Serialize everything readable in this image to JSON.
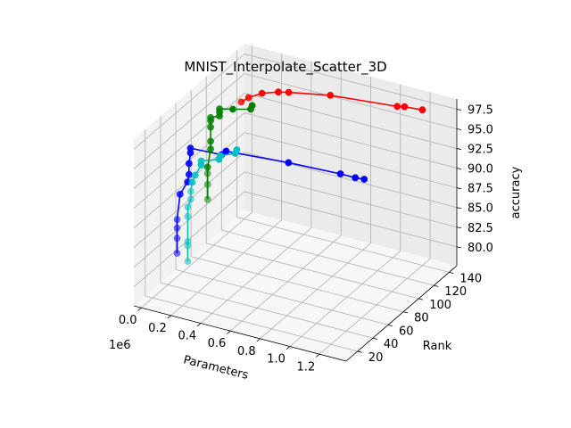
{
  "chart_data": {
    "type": "scatter",
    "projection": "3d",
    "title": "MNIST_Interpolate_Scatter_3D",
    "xlabel": "Parameters",
    "ylabel": "Rank",
    "zlabel": "accuracy",
    "x_offset_label": "1e6",
    "xlim": [
      -0.05,
      1.38
    ],
    "ylim": [
      5,
      150
    ],
    "zlim": [
      77.6,
      98.8
    ],
    "x_ticks": [
      0.0,
      0.2,
      0.4,
      0.6,
      0.8,
      1.0,
      1.2
    ],
    "x_tick_labels": [
      "0.0",
      "0.2",
      "0.4",
      "0.6",
      "0.8",
      "1.0",
      "1.2"
    ],
    "y_ticks": [
      20,
      40,
      60,
      80,
      100,
      120,
      140
    ],
    "y_tick_labels": [
      "20",
      "40",
      "60",
      "80",
      "100",
      "120",
      "140"
    ],
    "z_ticks": [
      80.0,
      82.5,
      85.0,
      87.5,
      90.0,
      92.5,
      95.0,
      97.5
    ],
    "z_tick_labels": [
      "80.0",
      "82.5",
      "85.0",
      "87.5",
      "90.0",
      "92.5",
      "95.0",
      "97.5"
    ],
    "grid": true,
    "legend": "none",
    "series": [
      {
        "color": "#ff0000",
        "points": [
          {
            "x": 0.0,
            "y": 136,
            "z": 92.8
          },
          {
            "x": 0.05,
            "y": 136,
            "z": 93.6
          },
          {
            "x": 0.14,
            "y": 136,
            "z": 94.6
          },
          {
            "x": 0.25,
            "y": 136,
            "z": 95.3
          },
          {
            "x": 0.32,
            "y": 136,
            "z": 95.6
          },
          {
            "x": 0.6,
            "y": 136,
            "z": 96.6
          },
          {
            "x": 1.05,
            "y": 136,
            "z": 97.4
          },
          {
            "x": 1.1,
            "y": 136,
            "z": 97.6
          },
          {
            "x": 1.22,
            "y": 136,
            "z": 97.8
          }
        ]
      },
      {
        "color": "#0000ff",
        "points": [
          {
            "x": 0.0,
            "y": 52,
            "z": 80.6
          },
          {
            "x": 0.0,
            "y": 52,
            "z": 82.5
          },
          {
            "x": 0.0,
            "y": 52,
            "z": 83.8
          },
          {
            "x": 0.0,
            "y": 52,
            "z": 84.9
          },
          {
            "x": 0.02,
            "y": 52,
            "z": 88.2
          },
          {
            "x": 0.07,
            "y": 52,
            "z": 90.0
          },
          {
            "x": 0.08,
            "y": 52,
            "z": 91.0
          },
          {
            "x": 0.08,
            "y": 52,
            "z": 92.4
          },
          {
            "x": 0.09,
            "y": 52,
            "z": 93.8
          },
          {
            "x": 0.09,
            "y": 52,
            "z": 94.4
          },
          {
            "x": 0.3,
            "y": 52,
            "z": 94.6
          },
          {
            "x": 0.33,
            "y": 52,
            "z": 95.2
          },
          {
            "x": 0.75,
            "y": 52,
            "z": 95.8
          },
          {
            "x": 1.1,
            "y": 52,
            "z": 96.1
          },
          {
            "x": 1.2,
            "y": 52,
            "z": 96.1
          },
          {
            "x": 1.26,
            "y": 52,
            "z": 96.2
          }
        ]
      },
      {
        "color": "#00bfbf",
        "points": [
          {
            "x": 0.0,
            "y": 66,
            "z": 78.4
          },
          {
            "x": 0.0,
            "y": 66,
            "z": 80.4
          },
          {
            "x": 0.0,
            "y": 66,
            "z": 80.9
          },
          {
            "x": 0.0,
            "y": 66,
            "z": 84.1
          },
          {
            "x": 0.0,
            "y": 66,
            "z": 85.3
          },
          {
            "x": 0.02,
            "y": 66,
            "z": 86.4
          },
          {
            "x": 0.02,
            "y": 66,
            "z": 87.4
          },
          {
            "x": 0.03,
            "y": 66,
            "z": 88.6
          },
          {
            "x": 0.05,
            "y": 66,
            "z": 89.6
          },
          {
            "x": 0.09,
            "y": 66,
            "z": 91.1
          },
          {
            "x": 0.09,
            "y": 66,
            "z": 91.6
          },
          {
            "x": 0.21,
            "y": 66,
            "z": 92.4
          },
          {
            "x": 0.22,
            "y": 66,
            "z": 92.9
          },
          {
            "x": 0.32,
            "y": 66,
            "z": 93.7
          },
          {
            "x": 0.33,
            "y": 66,
            "z": 94.2
          }
        ]
      },
      {
        "color": "#008000",
        "points": [
          {
            "x": 0.0,
            "y": 92,
            "z": 84.1
          },
          {
            "x": 0.0,
            "y": 92,
            "z": 86.0
          },
          {
            "x": 0.0,
            "y": 92,
            "z": 87.4
          },
          {
            "x": 0.0,
            "y": 92,
            "z": 88.2
          },
          {
            "x": 0.02,
            "y": 92,
            "z": 90.6
          },
          {
            "x": 0.02,
            "y": 92,
            "z": 91.6
          },
          {
            "x": 0.02,
            "y": 92,
            "z": 93.4
          },
          {
            "x": 0.02,
            "y": 92,
            "z": 94.2
          },
          {
            "x": 0.02,
            "y": 92,
            "z": 94.6
          },
          {
            "x": 0.08,
            "y": 92,
            "z": 95.1
          },
          {
            "x": 0.08,
            "y": 92,
            "z": 95.6
          },
          {
            "x": 0.08,
            "y": 92,
            "z": 96.0
          },
          {
            "x": 0.17,
            "y": 92,
            "z": 96.4
          },
          {
            "x": 0.29,
            "y": 92,
            "z": 97.0
          },
          {
            "x": 0.3,
            "y": 92,
            "z": 97.5
          }
        ]
      }
    ]
  }
}
